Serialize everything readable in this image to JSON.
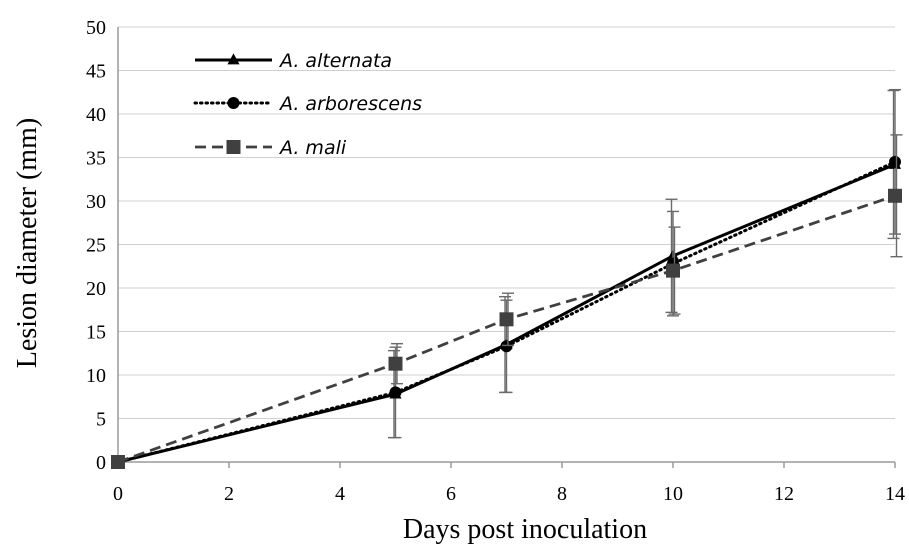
{
  "chart_data": {
    "type": "line",
    "title": "",
    "xlabel": "Days post inoculation",
    "ylabel": "Lesion diameter (mm)",
    "xlim": [
      0,
      14
    ],
    "ylim": [
      0,
      50
    ],
    "x_ticks": [
      0,
      2,
      4,
      6,
      8,
      10,
      12,
      14
    ],
    "y_ticks": [
      0,
      5,
      10,
      15,
      20,
      25,
      30,
      35,
      40,
      45,
      50
    ],
    "grid": "horizontal",
    "legend_position": "top-left",
    "series": [
      {
        "name": "A. alternata",
        "line_style": "solid",
        "marker": "triangle",
        "color": "#000000",
        "x": [
          0,
          5,
          7,
          10,
          14
        ],
        "y": [
          0,
          7.8,
          13.5,
          23.7,
          34.2
        ],
        "error": [
          0,
          5.0,
          5.5,
          6.5,
          8.5
        ]
      },
      {
        "name": "A. arborescens",
        "line_style": "dotted",
        "marker": "circle",
        "color": "#000000",
        "x": [
          0,
          5,
          7,
          10,
          14
        ],
        "y": [
          0,
          8.0,
          13.3,
          22.8,
          34.5
        ],
        "error": [
          0,
          5.2,
          5.3,
          6.0,
          8.3
        ]
      },
      {
        "name": "A. mali",
        "line_style": "dashed",
        "marker": "square",
        "color": "#404040",
        "x": [
          0,
          5,
          7,
          10,
          14
        ],
        "y": [
          0,
          11.3,
          16.4,
          22.0,
          30.6
        ],
        "error": [
          0,
          2.3,
          3.0,
          5.0,
          7.0
        ]
      }
    ]
  }
}
